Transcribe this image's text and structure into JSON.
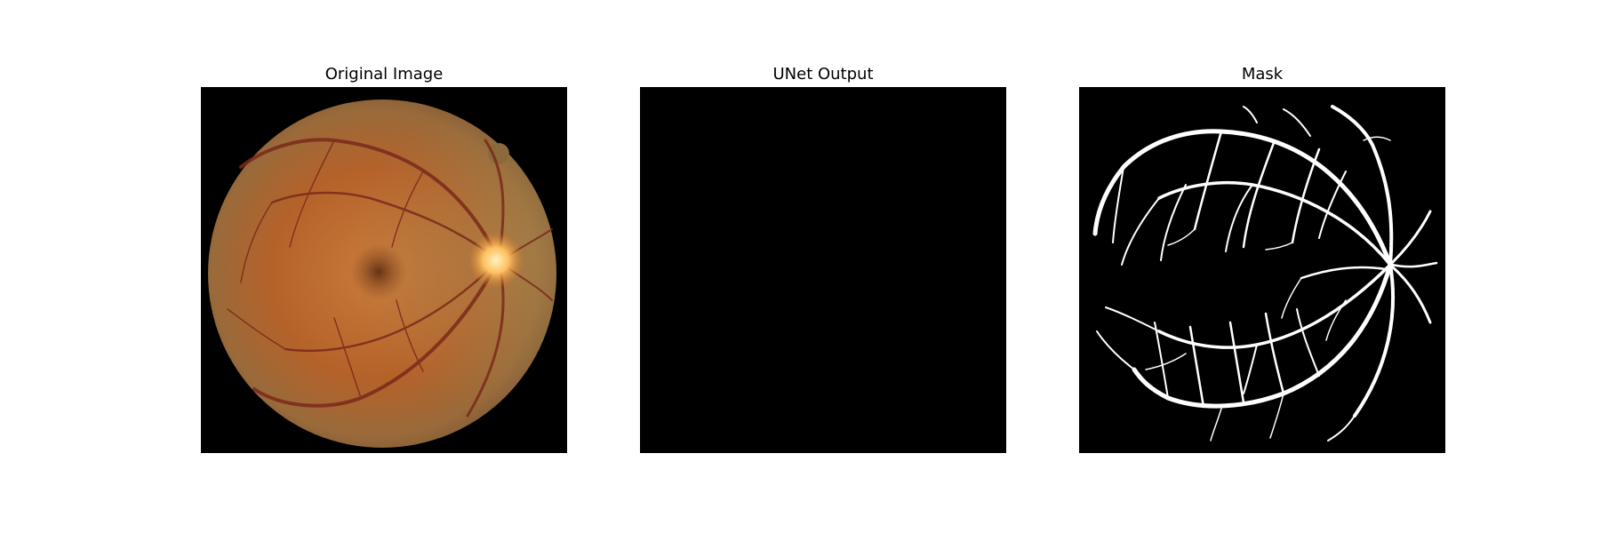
{
  "figure": {
    "panels": [
      {
        "title": "Original Image",
        "image": "retinal-fundus-photograph"
      },
      {
        "title": "UNet Output",
        "image": "all-black-segmentation-output"
      },
      {
        "title": "Mask",
        "image": "binary-vessel-segmentation-mask"
      }
    ],
    "colors": {
      "background": "#ffffff",
      "image_background": "#000000",
      "fundus_base": "#b8632a",
      "optic_disc": "#ffd27a",
      "vessel_mask": "#ffffff"
    }
  }
}
